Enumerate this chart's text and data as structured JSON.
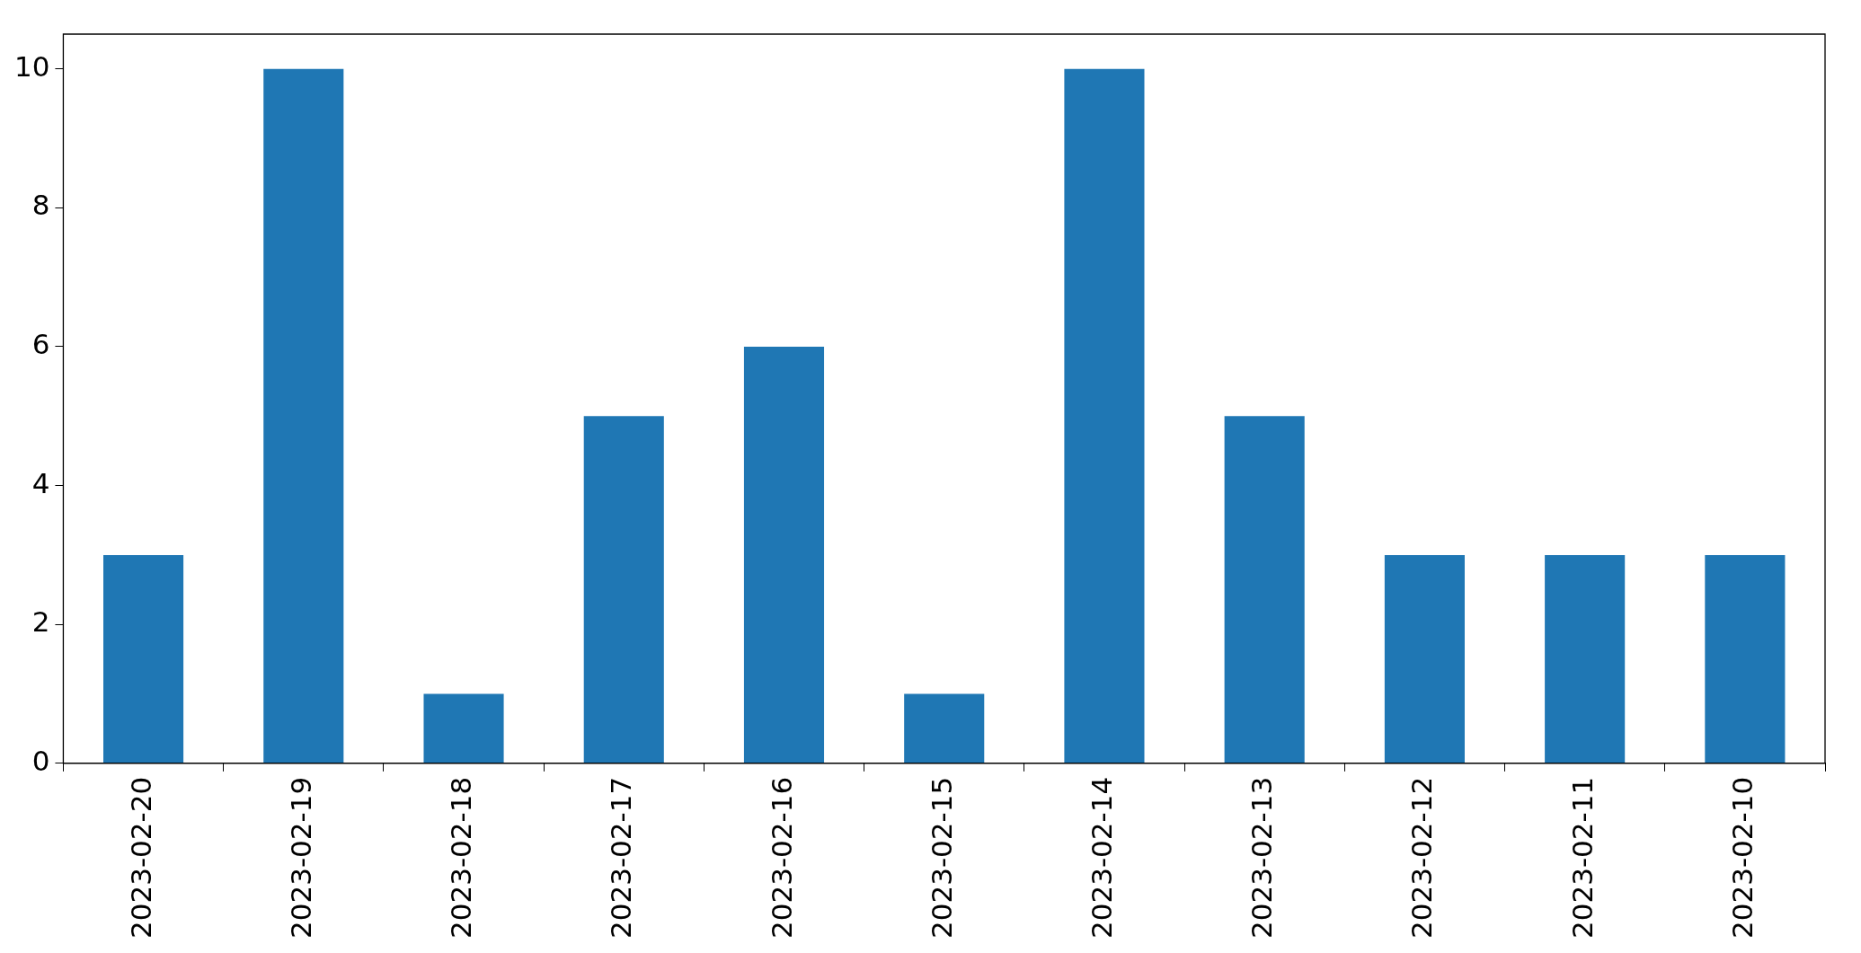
{
  "chart_data": {
    "type": "bar",
    "categories": [
      "2023-02-20",
      "2023-02-19",
      "2023-02-18",
      "2023-02-17",
      "2023-02-16",
      "2023-02-15",
      "2023-02-14",
      "2023-02-13",
      "2023-02-12",
      "2023-02-11",
      "2023-02-10"
    ],
    "values": [
      3,
      10,
      1,
      5,
      6,
      1,
      10,
      5,
      3,
      3,
      3
    ],
    "color": "#1f77b4",
    "ylim": [
      0,
      10.5
    ],
    "yticks": [
      0,
      2,
      4,
      6,
      8,
      10
    ],
    "grid": false,
    "legend": false
  }
}
